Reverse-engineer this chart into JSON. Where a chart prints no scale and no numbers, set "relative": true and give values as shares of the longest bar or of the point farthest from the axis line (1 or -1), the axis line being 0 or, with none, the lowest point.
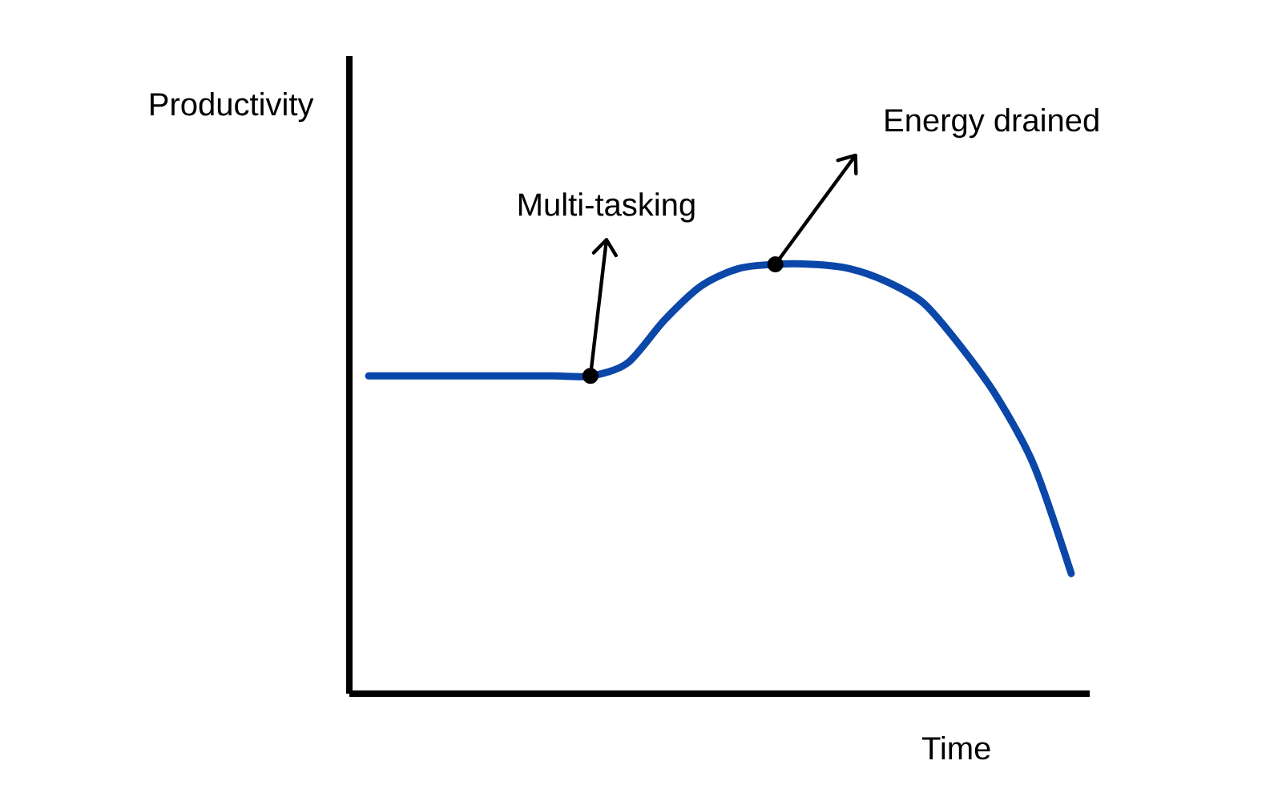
{
  "chart_data": {
    "type": "line",
    "xlabel": "Time",
    "ylabel": "Productivity",
    "relative": true,
    "color": "#0a47a8",
    "categories": [
      null,
      null,
      null,
      null,
      null,
      null,
      null,
      null,
      null,
      null,
      null,
      null,
      null,
      null,
      null,
      null,
      null,
      null,
      null,
      null
    ],
    "values": [
      0.74,
      0.74,
      0.74,
      0.74,
      0.74,
      0.74,
      0.74,
      0.77,
      0.87,
      0.95,
      0.99,
      1,
      1,
      0.99,
      0.96,
      0.91,
      0.81,
      0.69,
      0.53,
      0.28
    ],
    "annotations": [
      "Multi-tasking",
      "Energy drained"
    ]
  }
}
